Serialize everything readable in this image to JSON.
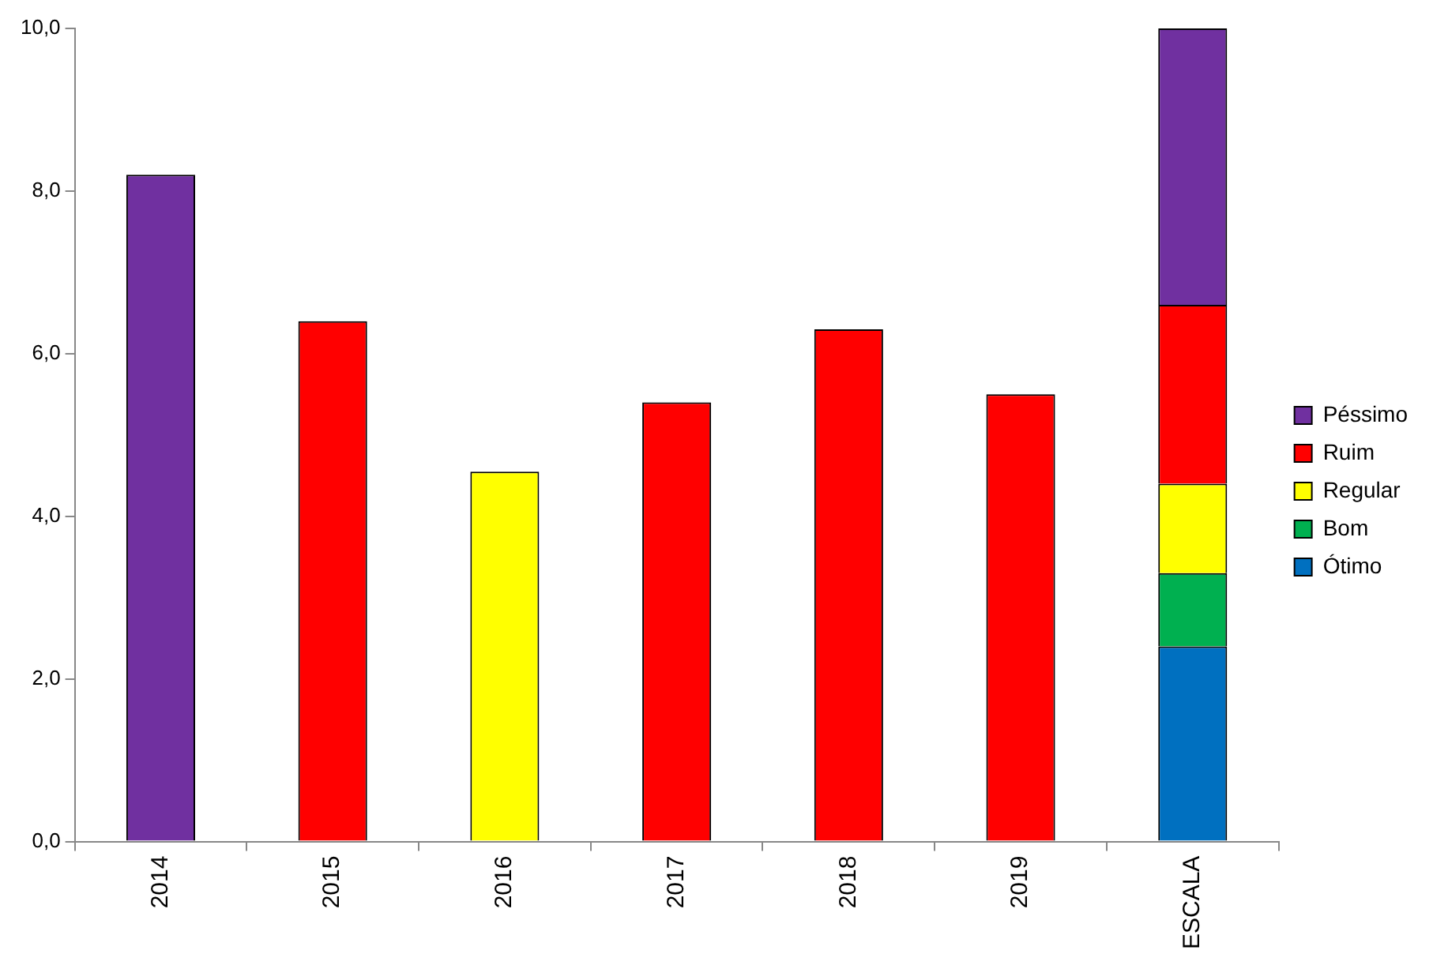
{
  "chart_data": {
    "type": "bar",
    "stacked": true,
    "categories": [
      "2014",
      "2015",
      "2016",
      "2017",
      "2018",
      "2019",
      "ESCALA"
    ],
    "series": [
      {
        "name": "Ótimo",
        "color": "#0070c0",
        "values": [
          null,
          null,
          null,
          null,
          null,
          null,
          2.4
        ]
      },
      {
        "name": "Bom",
        "color": "#00b050",
        "values": [
          null,
          null,
          null,
          null,
          null,
          null,
          0.9
        ]
      },
      {
        "name": "Regular",
        "color": "#ffff00",
        "values": [
          null,
          null,
          4.55,
          null,
          null,
          null,
          1.1
        ]
      },
      {
        "name": "Ruim",
        "color": "#ff0000",
        "values": [
          null,
          6.4,
          null,
          5.4,
          6.3,
          5.5,
          2.2
        ]
      },
      {
        "name": "Péssimo",
        "color": "#7030a0",
        "values": [
          8.2,
          null,
          null,
          null,
          null,
          null,
          3.4
        ]
      }
    ],
    "ylim": [
      0,
      10
    ],
    "yticks": [
      {
        "value": 0,
        "label": "0,0"
      },
      {
        "value": 2,
        "label": "2,0"
      },
      {
        "value": 4,
        "label": "4,0"
      },
      {
        "value": 6,
        "label": "6,0"
      },
      {
        "value": 8,
        "label": "8,0"
      },
      {
        "value": 10,
        "label": "10,0"
      }
    ],
    "grid": false,
    "legend": "right"
  }
}
